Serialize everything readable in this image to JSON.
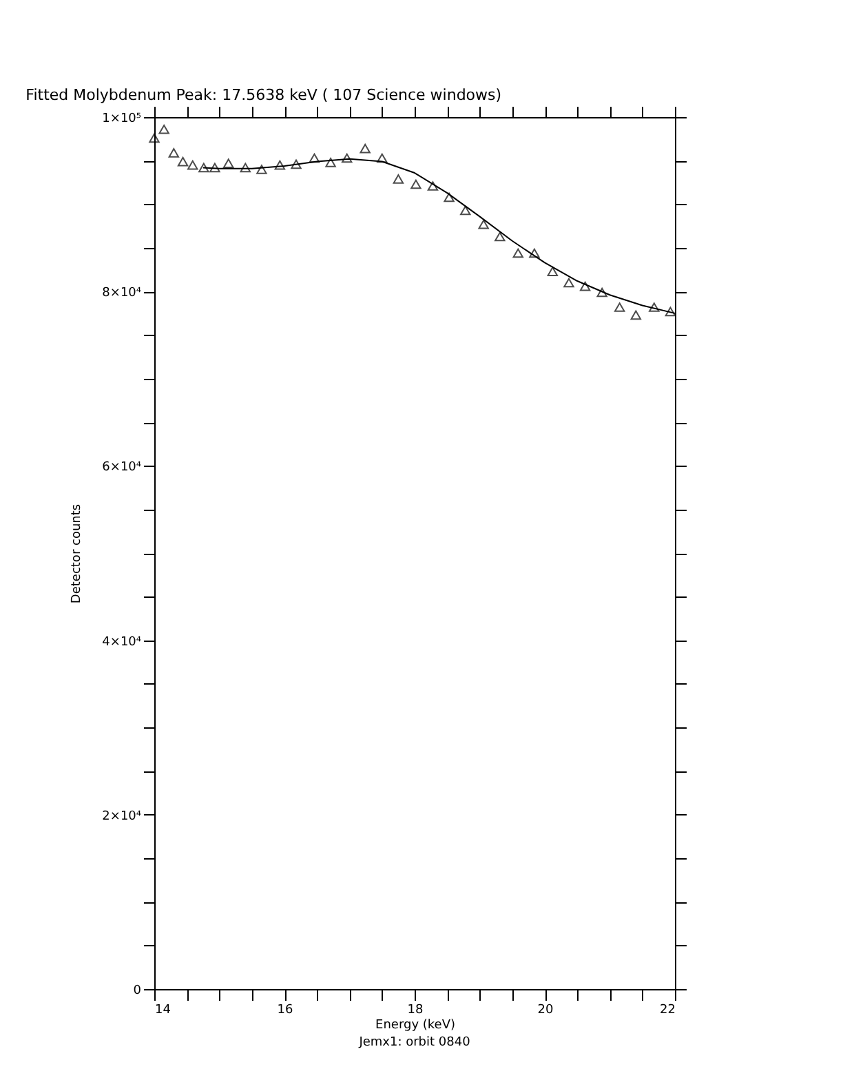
{
  "chart_data": {
    "type": "scatter",
    "title": "Fitted Molybdenum Peak:      17.5638 keV (     107 Science windows)",
    "xlabel": "Energy (keV)",
    "ylabel": "Detector counts",
    "annotations": [
      "Jemx1: orbit 0840"
    ],
    "xlim": [
      14,
      22
    ],
    "ylim": [
      0,
      100000
    ],
    "xticks": [
      14,
      {
        "value": 14.5,
        "label": null
      },
      {
        "value": 15,
        "label": null
      },
      {
        "value": 15.5,
        "label": null
      },
      16,
      {
        "value": 16.5,
        "label": null
      },
      {
        "value": 17,
        "label": null
      },
      {
        "value": 17.5,
        "label": null
      },
      18,
      {
        "value": 18.5,
        "label": null
      },
      {
        "value": 19,
        "label": null
      },
      {
        "value": 19.5,
        "label": null
      },
      20,
      {
        "value": 20.5,
        "label": null
      },
      {
        "value": 21,
        "label": null
      },
      {
        "value": 21.5,
        "label": null
      },
      22
    ],
    "yticks": [
      0,
      {
        "value": 5000,
        "label": null
      },
      {
        "value": 10000,
        "label": null
      },
      {
        "value": 15000,
        "label": null
      },
      {
        "value": 20000,
        "label": "2×10⁴"
      },
      {
        "value": 25000,
        "label": null
      },
      {
        "value": 30000,
        "label": null
      },
      {
        "value": 35000,
        "label": null
      },
      {
        "value": 40000,
        "label": "4×10⁴"
      },
      {
        "value": 45000,
        "label": null
      },
      {
        "value": 50000,
        "label": null
      },
      {
        "value": 55000,
        "label": null
      },
      {
        "value": 60000,
        "label": "6×10⁴"
      },
      {
        "value": 65000,
        "label": null
      },
      {
        "value": 70000,
        "label": null
      },
      {
        "value": 75000,
        "label": null
      },
      {
        "value": 80000,
        "label": "8×10⁴"
      },
      {
        "value": 85000,
        "label": null
      },
      {
        "value": 90000,
        "label": null
      },
      {
        "value": 95000,
        "label": null
      },
      {
        "value": 100000,
        "label": "1×10⁵"
      }
    ],
    "grid": false,
    "series": [
      {
        "marker": "triangle",
        "color": "#000000",
        "x": [
          14.0,
          14.15,
          14.3,
          14.44,
          14.59,
          14.76,
          14.93,
          15.14,
          15.4,
          15.65,
          15.93,
          16.18,
          16.46,
          16.71,
          16.96,
          17.24,
          17.5,
          17.75,
          18.02,
          18.28,
          18.53,
          18.78,
          19.06,
          19.31,
          19.59,
          19.84,
          20.12,
          20.37,
          20.62,
          20.88,
          21.15,
          21.4,
          21.68,
          21.93
        ],
        "values": [
          97600,
          98600,
          95900,
          94900,
          94500,
          94200,
          94200,
          94700,
          94200,
          94000,
          94500,
          94600,
          95300,
          94800,
          95300,
          96400,
          95300,
          92900,
          92300,
          92100,
          90800,
          89300,
          87700,
          86300,
          84400,
          84400,
          82300,
          81000,
          80600,
          79900,
          78200,
          77300,
          78200,
          77700
        ]
      },
      {
        "type": "line",
        "line_style": "solid",
        "color": "#000000",
        "x": [
          14.75,
          15.0,
          15.5,
          16.0,
          16.5,
          17.0,
          17.5,
          18.0,
          18.5,
          19.0,
          19.5,
          20.0,
          20.5,
          21.0,
          21.5,
          22.0
        ],
        "values": [
          94200,
          94100,
          94100,
          94400,
          94900,
          95200,
          94900,
          93600,
          91300,
          88600,
          85800,
          83300,
          81200,
          79600,
          78400,
          77500
        ]
      }
    ]
  }
}
